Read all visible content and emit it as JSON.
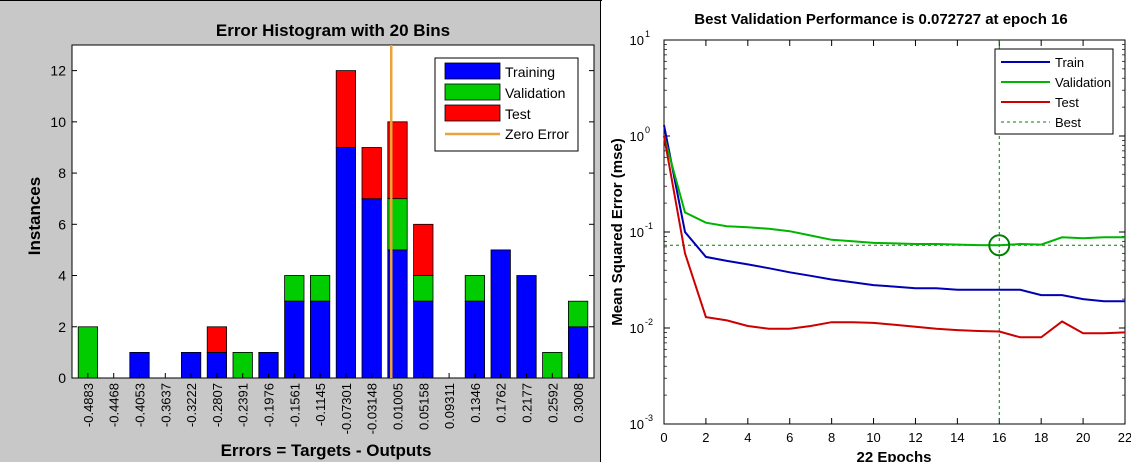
{
  "colors": {
    "figure_bg": "#c8c8c8",
    "training": "#0000ff",
    "validation": "#00cc00",
    "test": "#ff0000",
    "zero_error": "#e8a33a",
    "train_line": "#0000b4",
    "validation_line": "#00b400",
    "test_line": "#cc0000",
    "best_line": "#008000"
  },
  "chart_data": [
    {
      "type": "bar",
      "stacked": true,
      "title": "Error Histogram with 20 Bins",
      "xlabel": "Errors = Targets - Outputs",
      "ylabel": "Instances",
      "ylim": [
        0,
        13
      ],
      "yticks": [
        0,
        2,
        4,
        6,
        8,
        10,
        12
      ],
      "categories": [
        "-0.4883",
        "-0.4468",
        "-0.4053",
        "-0.3637",
        "-0.3222",
        "-0.2807",
        "-0.2391",
        "-0.1976",
        "-0.1561",
        "-0.1145",
        "-0.07301",
        "-0.03148",
        "0.01005",
        "0.05158",
        "0.09311",
        "0.1346",
        "0.1762",
        "0.2177",
        "0.2592",
        "0.3008"
      ],
      "series": [
        {
          "name": "Training",
          "values": [
            0,
            0,
            1,
            0,
            1,
            1,
            0,
            1,
            3,
            3,
            9,
            7,
            5,
            3,
            0,
            3,
            5,
            4,
            0,
            2
          ]
        },
        {
          "name": "Validation",
          "values": [
            2,
            0,
            0,
            0,
            0,
            0,
            1,
            0,
            1,
            1,
            0,
            0,
            2,
            1,
            0,
            1,
            0,
            0,
            1,
            1
          ]
        },
        {
          "name": "Test",
          "values": [
            0,
            0,
            0,
            0,
            0,
            1,
            0,
            0,
            0,
            0,
            3,
            2,
            3,
            2,
            0,
            0,
            0,
            0,
            0,
            0
          ]
        }
      ],
      "zero_error_label": "Zero Error",
      "zero_error_x": 0,
      "legend": [
        "Training",
        "Validation",
        "Test",
        "Zero Error"
      ],
      "legend_position": "top-right",
      "grid": false
    },
    {
      "type": "line",
      "title": "Best Validation Performance is 0.072727 at epoch 16",
      "xlabel": "22 Epochs",
      "ylabel": "Mean Squared Error  (mse)",
      "y_scale": "log",
      "xlim": [
        0,
        22
      ],
      "ylim": [
        0.001,
        10
      ],
      "xticks": [
        0,
        2,
        4,
        6,
        8,
        10,
        12,
        14,
        16,
        18,
        20,
        22
      ],
      "ytick_labels": [
        {
          "base": "10",
          "exp": "-3"
        },
        {
          "base": "10",
          "exp": "-2"
        },
        {
          "base": "10",
          "exp": "-1"
        },
        {
          "base": "10",
          "exp": "0"
        },
        {
          "base": "10",
          "exp": "1"
        }
      ],
      "x": [
        0,
        1,
        2,
        3,
        4,
        5,
        6,
        7,
        8,
        9,
        10,
        11,
        12,
        13,
        14,
        15,
        16,
        17,
        18,
        19,
        20,
        21,
        22
      ],
      "series": [
        {
          "name": "Train",
          "values": [
            1.3,
            0.1,
            0.055,
            0.05,
            0.046,
            0.042,
            0.038,
            0.035,
            0.032,
            0.03,
            0.028,
            0.027,
            0.026,
            0.026,
            0.025,
            0.025,
            0.025,
            0.025,
            0.022,
            0.022,
            0.02,
            0.019,
            0.019
          ]
        },
        {
          "name": "Validation",
          "values": [
            1.0,
            0.16,
            0.125,
            0.115,
            0.112,
            0.108,
            0.102,
            0.092,
            0.083,
            0.08,
            0.077,
            0.076,
            0.075,
            0.075,
            0.074,
            0.073,
            0.072727,
            0.075,
            0.074,
            0.088,
            0.086,
            0.088,
            0.088
          ]
        },
        {
          "name": "Test",
          "values": [
            1.0,
            0.06,
            0.013,
            0.012,
            0.0105,
            0.0098,
            0.0098,
            0.0105,
            0.0115,
            0.0115,
            0.0113,
            0.0108,
            0.0103,
            0.0098,
            0.0095,
            0.0093,
            0.0092,
            0.008,
            0.008,
            0.0117,
            0.0088,
            0.0088,
            0.009
          ]
        }
      ],
      "best": {
        "name": "Best",
        "epoch": 16,
        "value": 0.072727
      },
      "legend": [
        "Train",
        "Validation",
        "Test",
        "Best"
      ],
      "legend_position": "top-right",
      "grid": false
    }
  ]
}
